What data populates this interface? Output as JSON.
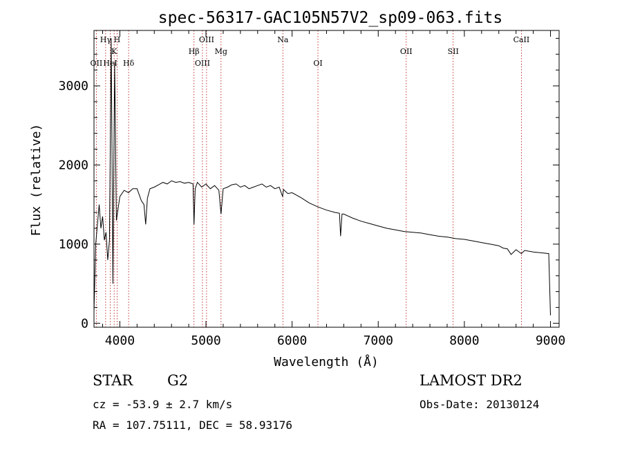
{
  "chart_data": {
    "type": "line",
    "title": "spec-56317-GAC105N57V2_sp09-063.fits",
    "xlabel": "Wavelength (Å)",
    "ylabel": "Flux (relative)",
    "xlim": [
      3700,
      9100
    ],
    "ylim": [
      -50,
      3700
    ],
    "xticks": [
      4000,
      5000,
      6000,
      7000,
      8000,
      9000
    ],
    "yticks": [
      0,
      1000,
      2000,
      3000
    ],
    "xtick_labels": [
      "4000",
      "5000",
      "6000",
      "7000",
      "8000",
      "9000"
    ],
    "ytick_labels": [
      "0",
      "1000",
      "2000",
      "3000"
    ],
    "grid": false,
    "series": [
      {
        "name": "flux",
        "color": "#000000",
        "x": [
          3700,
          3720,
          3740,
          3760,
          3780,
          3800,
          3820,
          3840,
          3860,
          3880,
          3900,
          3920,
          3940,
          3960,
          3980,
          4000,
          4050,
          4100,
          4150,
          4200,
          4250,
          4280,
          4300,
          4320,
          4350,
          4400,
          4450,
          4500,
          4550,
          4600,
          4650,
          4700,
          4750,
          4800,
          4850,
          4861,
          4875,
          4900,
          4950,
          5000,
          5050,
          5100,
          5150,
          5175,
          5200,
          5250,
          5300,
          5350,
          5400,
          5450,
          5500,
          5550,
          5600,
          5650,
          5700,
          5750,
          5800,
          5850,
          5890,
          5900,
          5950,
          6000,
          6100,
          6200,
          6300,
          6400,
          6500,
          6550,
          6563,
          6580,
          6600,
          6700,
          6800,
          6900,
          7000,
          7100,
          7200,
          7300,
          7400,
          7500,
          7600,
          7700,
          7800,
          7900,
          8000,
          8100,
          8200,
          8300,
          8400,
          8450,
          8500,
          8542,
          8600,
          8662,
          8700,
          8800,
          8900,
          8980,
          9000
        ],
        "y": [
          150,
          1000,
          1250,
          1500,
          1200,
          1350,
          1050,
          1150,
          800,
          1050,
          3600,
          500,
          3300,
          1300,
          1450,
          1600,
          1680,
          1650,
          1700,
          1700,
          1550,
          1500,
          1250,
          1580,
          1700,
          1720,
          1750,
          1780,
          1760,
          1800,
          1780,
          1790,
          1770,
          1780,
          1760,
          1250,
          1700,
          1780,
          1720,
          1760,
          1700,
          1740,
          1680,
          1380,
          1700,
          1720,
          1750,
          1760,
          1720,
          1740,
          1700,
          1720,
          1740,
          1760,
          1720,
          1740,
          1700,
          1720,
          1600,
          1690,
          1640,
          1650,
          1590,
          1520,
          1470,
          1430,
          1400,
          1390,
          1100,
          1380,
          1380,
          1330,
          1290,
          1260,
          1230,
          1200,
          1180,
          1160,
          1150,
          1140,
          1120,
          1100,
          1090,
          1070,
          1060,
          1040,
          1020,
          1000,
          980,
          950,
          940,
          870,
          930,
          880,
          920,
          900,
          890,
          880,
          100
        ]
      }
    ],
    "spectral_lines": [
      {
        "label": "OII",
        "x": 3727,
        "row": 3
      },
      {
        "label": "Hγ",
        "x": 3835,
        "row": 1
      },
      {
        "label": "HeI",
        "x": 3889,
        "row": 3
      },
      {
        "label": "K",
        "x": 3934,
        "row": 2
      },
      {
        "label": "H",
        "x": 3968,
        "row": 1
      },
      {
        "label": "Hδ",
        "x": 4102,
        "row": 3
      },
      {
        "label": "Hβ",
        "x": 4861,
        "row": 2
      },
      {
        "label": "OIII",
        "x": 4959,
        "row": 3
      },
      {
        "label": "OIII",
        "x": 5007,
        "row": 1
      },
      {
        "label": "Mg",
        "x": 5175,
        "row": 2
      },
      {
        "label": "Na",
        "x": 5893,
        "row": 1
      },
      {
        "label": "OI",
        "x": 6300,
        "row": 3
      },
      {
        "label": "OII",
        "x": 7325,
        "row": 2
      },
      {
        "label": "SII",
        "x": 7870,
        "row": 2
      },
      {
        "label": "CaII",
        "x": 8662,
        "row": 1
      }
    ],
    "line_marker_color": "#b00000"
  },
  "info": {
    "object_type": "STAR",
    "subclass": "G2",
    "survey": "LAMOST DR2",
    "cz": "cz = -53.9 ± 2.7 km/s",
    "obs_date": "Obs-Date: 20130124",
    "coords": "RA = 107.75111, DEC =  58.93176"
  }
}
